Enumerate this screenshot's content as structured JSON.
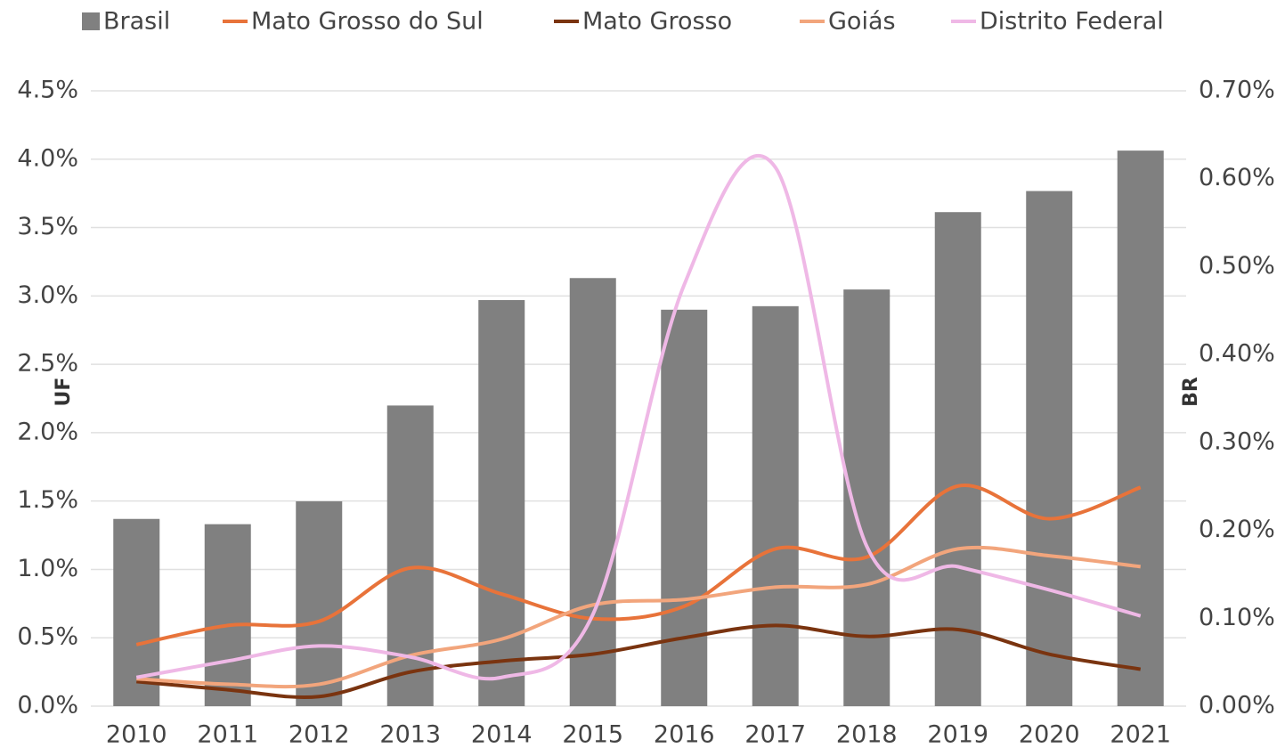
{
  "chart_data": {
    "type": "bar-line",
    "categories": [
      "2010",
      "2011",
      "2012",
      "2013",
      "2014",
      "2015",
      "2016",
      "2017",
      "2018",
      "2019",
      "2020",
      "2021"
    ],
    "ylabel": "UF",
    "y2label": "BR",
    "ylim": [
      0,
      4.5
    ],
    "yticks": [
      {
        "value": 0,
        "label": "0.0%"
      },
      {
        "value": 0.5,
        "label": "0.5%"
      },
      {
        "value": 1,
        "label": "1.0%"
      },
      {
        "value": 1.5,
        "label": "1.5%"
      },
      {
        "value": 2,
        "label": "2.0%"
      },
      {
        "value": 2.5,
        "label": "2.5%"
      },
      {
        "value": 3,
        "label": "3.0%"
      },
      {
        "value": 3.5,
        "label": "3.5%"
      },
      {
        "value": 4,
        "label": "4.0%"
      },
      {
        "value": 4.5,
        "label": "4.5%"
      }
    ],
    "y2lim": [
      0,
      0.7
    ],
    "y2ticks": [
      {
        "value": 0,
        "label": "0.00%"
      },
      {
        "value": 0.1,
        "label": "0.10%"
      },
      {
        "value": 0.2,
        "label": "0.20%"
      },
      {
        "value": 0.3,
        "label": "0.30%"
      },
      {
        "value": 0.4,
        "label": "0.40%"
      },
      {
        "value": 0.5,
        "label": "0.50%"
      },
      {
        "value": 0.6,
        "label": "0.60%"
      },
      {
        "value": 0.7,
        "label": "0.70%"
      }
    ],
    "grid": true,
    "series": [
      {
        "name": "Brasil",
        "type": "bar",
        "axis": "y2",
        "color": "#808080",
        "values": [
          0.213,
          0.207,
          0.233,
          0.342,
          0.462,
          0.487,
          0.451,
          0.455,
          0.474,
          0.562,
          0.586,
          0.632
        ]
      },
      {
        "name": "Mato Grosso do Sul",
        "type": "line",
        "color": "#e8733a",
        "values": [
          0.45,
          0.59,
          0.62,
          1.01,
          0.82,
          0.64,
          0.73,
          1.15,
          1.09,
          1.61,
          1.37,
          1.6
        ]
      },
      {
        "name": "Mato Grosso",
        "type": "line",
        "color": "#7a3410",
        "values": [
          0.18,
          0.12,
          0.07,
          0.25,
          0.33,
          0.38,
          0.5,
          0.59,
          0.51,
          0.56,
          0.38,
          0.27
        ]
      },
      {
        "name": "Goiás",
        "type": "line",
        "color": "#f2a57c",
        "values": [
          0.2,
          0.16,
          0.16,
          0.37,
          0.49,
          0.74,
          0.78,
          0.87,
          0.89,
          1.15,
          1.1,
          1.02
        ]
      },
      {
        "name": "Distrito Federal",
        "type": "line",
        "color": "#efb8e6",
        "values": [
          0.21,
          0.33,
          0.44,
          0.36,
          0.21,
          0.67,
          3.08,
          3.94,
          1.17,
          1.02,
          0.85,
          0.66
        ]
      }
    ]
  }
}
